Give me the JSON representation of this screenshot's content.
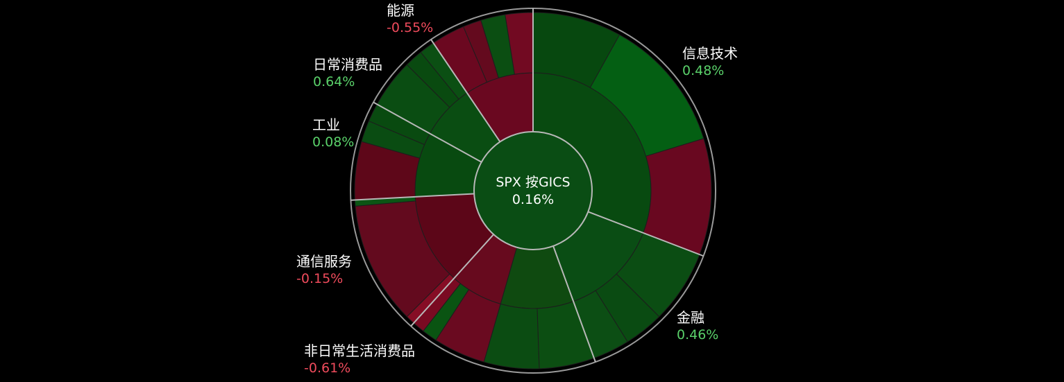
{
  "chart_data": {
    "type": "sunburst",
    "center": {
      "title": "SPX 按GICS",
      "change": "0.16%",
      "color": "#0a4d14"
    },
    "colors": {
      "positive_text": "#5ad16a",
      "negative_text": "#ef4b5c",
      "background": "#000000",
      "separator": "#b8b8b8"
    },
    "sectors": [
      {
        "name": "信息技术",
        "change": "0.48%",
        "direction": "up",
        "start_deg": 0,
        "end_deg": 111,
        "inner_color": "#084a10",
        "outer": [
          {
            "start_deg": 0,
            "end_deg": 29,
            "color": "#07480f"
          },
          {
            "start_deg": 29,
            "end_deg": 73,
            "color": "#045f13"
          },
          {
            "start_deg": 73,
            "end_deg": 111,
            "color": "#690820"
          }
        ]
      },
      {
        "name": "金融",
        "change": "0.46%",
        "direction": "up",
        "start_deg": 111,
        "end_deg": 160,
        "inner_color": "#0a4d14",
        "outer": [
          {
            "start_deg": 111,
            "end_deg": 135,
            "color": "#0b4d13"
          },
          {
            "start_deg": 135,
            "end_deg": 148,
            "color": "#0a4b12"
          },
          {
            "start_deg": 148,
            "end_deg": 160,
            "color": "#0c4e14"
          }
        ]
      },
      {
        "name": "非日常生活消费品",
        "change": "-0.61%",
        "direction": "down",
        "start_deg": 160,
        "end_deg": 222,
        "inner_color": "#11430f",
        "inner_split": [
          {
            "start_deg": 160,
            "end_deg": 196,
            "color": "#0f4a10"
          },
          {
            "start_deg": 196,
            "end_deg": 222,
            "color": "#670a1e"
          }
        ],
        "outer": [
          {
            "start_deg": 160,
            "end_deg": 178,
            "color": "#0c4e12"
          },
          {
            "start_deg": 178,
            "end_deg": 196,
            "color": "#0b4c12"
          },
          {
            "start_deg": 196,
            "end_deg": 213,
            "color": "#6a0a20"
          },
          {
            "start_deg": 213,
            "end_deg": 218,
            "color": "#0a5412"
          },
          {
            "start_deg": 218,
            "end_deg": 222,
            "color": "#7a0a22"
          }
        ]
      },
      {
        "name": "通信服务",
        "change": "-0.15%",
        "direction": "down",
        "start_deg": 222,
        "end_deg": 267,
        "inner_color": "#5c0618",
        "outer": [
          {
            "start_deg": 222,
            "end_deg": 225,
            "color": "#860d25"
          },
          {
            "start_deg": 225,
            "end_deg": 265,
            "color": "#630a1e"
          },
          {
            "start_deg": 265,
            "end_deg": 267,
            "color": "#0b5514"
          }
        ]
      },
      {
        "name": "工业",
        "change": "0.08%",
        "direction": "up",
        "start_deg": 267,
        "end_deg": 299,
        "inner_color": "#084a10",
        "outer": [
          {
            "start_deg": 267,
            "end_deg": 286,
            "color": "#5e0719"
          },
          {
            "start_deg": 286,
            "end_deg": 293,
            "color": "#0a4c12"
          },
          {
            "start_deg": 293,
            "end_deg": 299,
            "color": "#094a10"
          }
        ]
      },
      {
        "name": "日常消费品",
        "change": "0.64%",
        "direction": "up",
        "start_deg": 299,
        "end_deg": 326,
        "inner_color": "#0a4d12",
        "outer": [
          {
            "start_deg": 299,
            "end_deg": 315,
            "color": "#0a4d12"
          },
          {
            "start_deg": 315,
            "end_deg": 321,
            "color": "#094a10"
          },
          {
            "start_deg": 321,
            "end_deg": 326,
            "color": "#0b4f13"
          }
        ]
      },
      {
        "name": "能源",
        "change": "-0.55%",
        "direction": "down",
        "start_deg": 326,
        "end_deg": 360,
        "inner_color": "#6a0820",
        "outer": [
          {
            "start_deg": 326,
            "end_deg": 337,
            "color": "#6b0820"
          },
          {
            "start_deg": 337,
            "end_deg": 343,
            "color": "#640a1e"
          },
          {
            "start_deg": 343,
            "end_deg": 351,
            "color": "#0b4e12"
          },
          {
            "start_deg": 351,
            "end_deg": 360,
            "color": "#720a22"
          }
        ]
      }
    ],
    "labels": [
      {
        "sector": "信息技术",
        "anchor": "start",
        "name_pos": [
          983,
          84
        ],
        "val_pos": [
          983,
          108
        ]
      },
      {
        "sector": "金融",
        "anchor": "start",
        "name_pos": [
          975,
          465
        ],
        "val_pos": [
          975,
          489
        ]
      },
      {
        "sector": "非日常生活消费品",
        "anchor": "start",
        "name_pos": [
          438,
          513
        ],
        "val_pos": [
          438,
          537
        ]
      },
      {
        "sector": "通信服务",
        "anchor": "start",
        "name_pos": [
          427,
          384
        ],
        "val_pos": [
          427,
          408
        ]
      },
      {
        "sector": "工业",
        "anchor": "start",
        "name_pos": [
          450,
          187
        ],
        "val_pos": [
          450,
          211
        ]
      },
      {
        "sector": "日常消费品",
        "anchor": "start",
        "name_pos": [
          451,
          100
        ],
        "val_pos": [
          451,
          124
        ]
      },
      {
        "sector": "能源",
        "anchor": "start",
        "name_pos": [
          557,
          22
        ],
        "val_pos": [
          557,
          46
        ]
      }
    ]
  }
}
